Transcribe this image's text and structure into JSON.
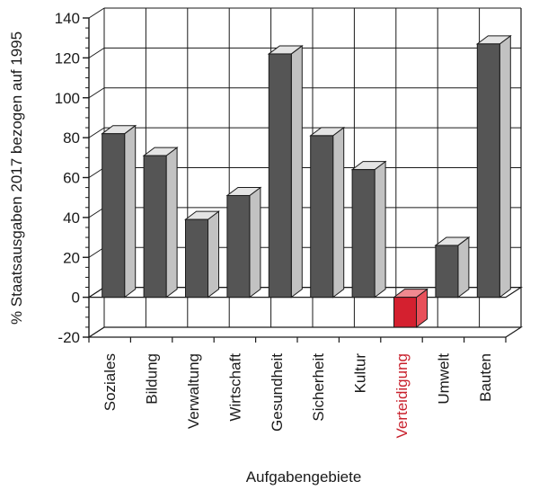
{
  "chart_data": {
    "type": "bar",
    "title": "",
    "xlabel": "Aufgabengebiete",
    "ylabel": "% Staatsausgaben 2017 bezogen auf 1995",
    "categories": [
      "Soziales",
      "Bildung",
      "Verwaltung",
      "Wirtschaft",
      "Gesundheit",
      "Sicherheit",
      "Kultur",
      "Verteidigung",
      "Umwelt",
      "Bauten"
    ],
    "values": [
      82,
      71,
      39,
      51,
      122,
      81,
      64,
      -15,
      26,
      127
    ],
    "ylim": [
      -20,
      140
    ],
    "yticks": [
      -20,
      0,
      20,
      40,
      60,
      80,
      100,
      120,
      140
    ],
    "grid": true,
    "style": "3d",
    "highlight_category": "Verteidigung",
    "colors": {
      "bar_front": "#555555",
      "bar_side": "#c2c2c2",
      "bar_top": "#e4e4e4",
      "highlight_front": "#d4202f",
      "highlight_side": "#e8505a",
      "highlight_top": "#f08a90",
      "highlight_label": "#c8202c",
      "grid": "#1a1a1a"
    }
  }
}
